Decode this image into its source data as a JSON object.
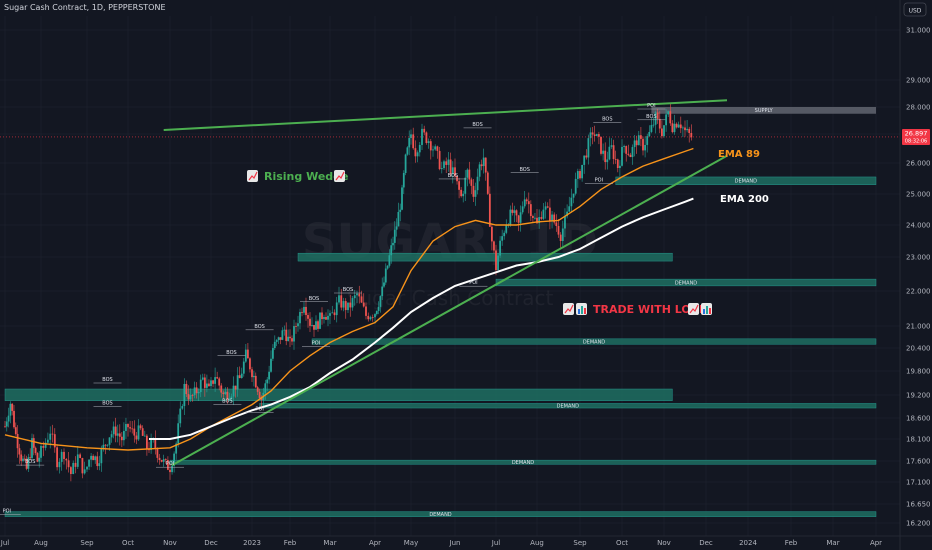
{
  "header": {
    "title": "Sugar Cash Contract, 1D, PEPPERSTONE",
    "currency": "USD"
  },
  "watermark": {
    "symbol": "SUGAR, 1D",
    "name": "Sugar Cash Contract"
  },
  "colors": {
    "bg": "#131722",
    "up": "#26a69a",
    "down": "#ef5350",
    "ema89": "#f7931a",
    "ema200": "#ffffff",
    "wedge": "#4caf50",
    "zone": "#1e6e62",
    "supply": "#5d606b",
    "price_tag": "#f23645"
  },
  "price_label": {
    "price": "26.897",
    "countdown": "08:32:06",
    "value": 26.897
  },
  "annotations": {
    "rising_wedge": "Rising Wedge",
    "trade_with_love": "TRADE WITH LOVE",
    "ema89": "EMA 89",
    "ema200": "EMA 200",
    "chart_icon": "chart-increasing-icon",
    "bar_icon": "bar-chart-icon"
  },
  "chart_data": {
    "type": "candlestick",
    "x_axis": [
      "Jul",
      "Aug",
      "Sep",
      "Oct",
      "Nov",
      "Dec",
      "2023",
      "Feb",
      "Mar",
      "Apr",
      "May",
      "Jun",
      "Jul",
      "Aug",
      "Sep",
      "Oct",
      "Nov",
      "Dec",
      "2024",
      "Feb",
      "Mar",
      "Apr"
    ],
    "y_ticks": [
      16.2,
      16.65,
      17.1,
      17.6,
      18.1,
      18.6,
      19.2,
      19.8,
      20.4,
      21.0,
      22.0,
      23.0,
      24.0,
      25.0,
      26.0,
      27.0,
      28.0,
      29.0,
      31.0
    ],
    "y_range": [
      16.15,
      31.8
    ],
    "close_path_t_v": [
      [
        0,
        18.4
      ],
      [
        0.15,
        19.0
      ],
      [
        0.3,
        18.2
      ],
      [
        0.45,
        17.7
      ],
      [
        0.6,
        17.4
      ],
      [
        0.75,
        18.0
      ],
      [
        0.9,
        17.6
      ],
      [
        1.05,
        17.9
      ],
      [
        1.2,
        18.3
      ],
      [
        1.35,
        17.6
      ],
      [
        1.5,
        17.8
      ],
      [
        1.65,
        17.3
      ],
      [
        1.8,
        17.7
      ],
      [
        1.95,
        17.3
      ],
      [
        2.1,
        17.8
      ],
      [
        2.25,
        17.6
      ],
      [
        2.4,
        17.9
      ],
      [
        2.55,
        18.2
      ],
      [
        2.7,
        18.3
      ],
      [
        2.85,
        18.1
      ],
      [
        3.0,
        18.4
      ],
      [
        3.15,
        18.2
      ],
      [
        3.3,
        18.3
      ],
      [
        3.45,
        17.9
      ],
      [
        3.6,
        18.0
      ],
      [
        3.75,
        17.7
      ],
      [
        3.9,
        17.5
      ],
      [
        4.0,
        17.45
      ],
      [
        4.15,
        18.0
      ],
      [
        4.35,
        19.4
      ],
      [
        4.5,
        19.1
      ],
      [
        4.65,
        19.3
      ],
      [
        4.8,
        19.6
      ],
      [
        4.95,
        19.3
      ],
      [
        5.1,
        19.7
      ],
      [
        5.3,
        19.2
      ],
      [
        5.5,
        19.3
      ],
      [
        5.7,
        19.6
      ],
      [
        5.85,
        20.2
      ],
      [
        6.0,
        19.8
      ],
      [
        6.15,
        19.4
      ],
      [
        6.25,
        19.1
      ],
      [
        6.4,
        19.6
      ],
      [
        6.55,
        20.4
      ],
      [
        6.7,
        20.6
      ],
      [
        6.85,
        20.9
      ],
      [
        7.0,
        20.5
      ],
      [
        7.2,
        21.2
      ],
      [
        7.35,
        21.7
      ],
      [
        7.5,
        21.1
      ],
      [
        7.65,
        21.0
      ],
      [
        7.85,
        21.4
      ],
      [
        8.0,
        21.2
      ],
      [
        8.2,
        21.7
      ],
      [
        8.4,
        21.5
      ],
      [
        8.6,
        21.9
      ],
      [
        8.8,
        21.3
      ],
      [
        9.0,
        21.4
      ],
      [
        9.2,
        22.0
      ],
      [
        9.4,
        23.0
      ],
      [
        9.6,
        24.0
      ],
      [
        9.75,
        25.0
      ],
      [
        9.85,
        26.1
      ],
      [
        10.0,
        27.0
      ],
      [
        10.1,
        26.4
      ],
      [
        10.25,
        27.0
      ],
      [
        10.4,
        26.8
      ],
      [
        10.55,
        26.4
      ],
      [
        10.7,
        25.8
      ],
      [
        10.85,
        26.0
      ],
      [
        11.0,
        25.5
      ],
      [
        11.15,
        24.9
      ],
      [
        11.3,
        25.7
      ],
      [
        11.45,
        25.0
      ],
      [
        11.6,
        25.9
      ],
      [
        11.7,
        26.2
      ],
      [
        11.8,
        24.8
      ],
      [
        11.9,
        23.5
      ],
      [
        12.0,
        22.7
      ],
      [
        12.1,
        23.4
      ],
      [
        12.25,
        24.1
      ],
      [
        12.4,
        24.4
      ],
      [
        12.55,
        24.0
      ],
      [
        12.7,
        25.0
      ],
      [
        12.85,
        24.5
      ],
      [
        13.0,
        24.0
      ],
      [
        13.15,
        24.6
      ],
      [
        13.3,
        24.3
      ],
      [
        13.45,
        24.0
      ],
      [
        13.55,
        23.7
      ],
      [
        13.7,
        24.3
      ],
      [
        13.85,
        25.2
      ],
      [
        14.0,
        25.7
      ],
      [
        14.15,
        26.4
      ],
      [
        14.3,
        27.1
      ],
      [
        14.45,
        26.7
      ],
      [
        14.6,
        26.1
      ],
      [
        14.75,
        26.5
      ],
      [
        14.9,
        25.9
      ],
      [
        15.05,
        26.6
      ],
      [
        15.2,
        26.3
      ],
      [
        15.35,
        26.8
      ],
      [
        15.5,
        26.6
      ],
      [
        15.65,
        27.0
      ],
      [
        15.8,
        27.6
      ],
      [
        15.95,
        27.1
      ],
      [
        16.1,
        27.8
      ],
      [
        16.2,
        27.3
      ],
      [
        16.35,
        27.5
      ],
      [
        16.5,
        27.1
      ],
      [
        16.65,
        26.9
      ]
    ],
    "series": [
      {
        "name": "EMA 89",
        "t_v": [
          [
            0,
            18.2
          ],
          [
            1,
            18.0
          ],
          [
            2,
            17.9
          ],
          [
            3,
            17.85
          ],
          [
            4,
            17.9
          ],
          [
            4.5,
            18.1
          ],
          [
            5,
            18.4
          ],
          [
            6,
            18.95
          ],
          [
            6.5,
            19.3
          ],
          [
            7,
            19.8
          ],
          [
            7.5,
            20.2
          ],
          [
            8,
            20.55
          ],
          [
            8.5,
            20.85
          ],
          [
            9,
            21.1
          ],
          [
            9.5,
            21.55
          ],
          [
            10,
            22.6
          ],
          [
            10.5,
            23.5
          ],
          [
            11,
            23.95
          ],
          [
            11.5,
            24.15
          ],
          [
            12,
            24.0
          ],
          [
            12.5,
            24.0
          ],
          [
            13,
            24.1
          ],
          [
            13.5,
            24.15
          ],
          [
            14,
            24.6
          ],
          [
            14.5,
            25.15
          ],
          [
            15,
            25.55
          ],
          [
            15.5,
            25.9
          ],
          [
            16,
            26.15
          ],
          [
            16.5,
            26.4
          ],
          [
            16.7,
            26.5
          ]
        ]
      },
      {
        "name": "EMA 200",
        "t_v": [
          [
            3.5,
            18.1
          ],
          [
            4,
            18.1
          ],
          [
            4.5,
            18.2
          ],
          [
            5,
            18.4
          ],
          [
            5.5,
            18.6
          ],
          [
            6,
            18.8
          ],
          [
            6.5,
            18.95
          ],
          [
            7,
            19.15
          ],
          [
            7.5,
            19.4
          ],
          [
            8,
            19.75
          ],
          [
            8.5,
            20.1
          ],
          [
            9,
            20.55
          ],
          [
            9.5,
            20.95
          ],
          [
            10,
            21.4
          ],
          [
            10.5,
            21.8
          ],
          [
            11,
            22.15
          ],
          [
            11.5,
            22.35
          ],
          [
            12,
            22.55
          ],
          [
            12.5,
            22.75
          ],
          [
            13,
            22.85
          ],
          [
            13.5,
            23.0
          ],
          [
            14,
            23.25
          ],
          [
            14.5,
            23.6
          ],
          [
            15,
            23.95
          ],
          [
            15.5,
            24.25
          ],
          [
            16,
            24.5
          ],
          [
            16.5,
            24.75
          ],
          [
            16.7,
            24.85
          ]
        ]
      }
    ],
    "zones": [
      {
        "label": "SUPPLY",
        "low": 27.75,
        "high": 28.0,
        "t_start": 15.7,
        "t_end": 21.0,
        "kind": "supply"
      },
      {
        "label": "DEMAND",
        "low": 25.3,
        "high": 25.55,
        "t_start": 14.85,
        "t_end": 21.0,
        "kind": "demand"
      },
      {
        "label": "",
        "low": 22.88,
        "high": 23.12,
        "t_start": 7.2,
        "t_end": 16.2,
        "kind": "demand"
      },
      {
        "label": "DEMAND",
        "low": 22.15,
        "high": 22.35,
        "t_start": 12.0,
        "t_end": 21.0,
        "kind": "demand"
      },
      {
        "label": "DEMAND",
        "low": 20.5,
        "high": 20.65,
        "t_start": 7.55,
        "t_end": 21.0,
        "kind": "demand"
      },
      {
        "label": "",
        "low": 19.05,
        "high": 19.35,
        "t_start": 0,
        "t_end": 16.2,
        "kind": "demand"
      },
      {
        "label": "DEMAND",
        "low": 18.86,
        "high": 18.98,
        "t_start": 6.2,
        "t_end": 21.0,
        "kind": "demand"
      },
      {
        "label": "DEMAND",
        "low": 17.52,
        "high": 17.62,
        "t_start": 4.0,
        "t_end": 21.0,
        "kind": "demand"
      },
      {
        "label": "DEMAND",
        "low": 16.35,
        "high": 16.47,
        "t_start": 0,
        "t_end": 21.0,
        "kind": "demand"
      }
    ],
    "wedge_lines": [
      {
        "t1": 3.85,
        "v1": 27.15,
        "t2": 17.5,
        "v2": 28.25
      },
      {
        "t1": 4.05,
        "v1": 17.5,
        "t2": 17.5,
        "v2": 26.25
      }
    ],
    "structure_labels": [
      {
        "text": "BOS",
        "t": 2.5,
        "v": 19.55
      },
      {
        "text": "BOS",
        "t": 2.5,
        "v": 18.95
      },
      {
        "text": "BOS",
        "t": 5.4,
        "v": 19.0
      },
      {
        "text": "BOS",
        "t": 5.5,
        "v": 20.25
      },
      {
        "text": "BOS",
        "t": 6.2,
        "v": 20.95
      },
      {
        "text": "BOS",
        "t": 7.6,
        "v": 21.75
      },
      {
        "text": "BOS",
        "t": 8.4,
        "v": 22.0
      },
      {
        "text": "BOS",
        "t": 11.55,
        "v": 27.3
      },
      {
        "text": "BOS",
        "t": 10.95,
        "v": 25.55
      },
      {
        "text": "BOS",
        "t": 12.7,
        "v": 25.75
      },
      {
        "text": "BOS",
        "t": 14.65,
        "v": 27.5
      },
      {
        "text": "BOS",
        "t": 15.7,
        "v": 27.6
      },
      {
        "text": "BOS",
        "t": 0.7,
        "v": 17.55
      },
      {
        "text": "POI",
        "t": 6.2,
        "v": 18.8
      },
      {
        "text": "POI",
        "t": 7.65,
        "v": 20.5
      },
      {
        "text": "POI",
        "t": 4.0,
        "v": 17.5
      },
      {
        "text": "POI",
        "t": 11.45,
        "v": 22.2
      },
      {
        "text": "POI",
        "t": 14.45,
        "v": 25.4
      },
      {
        "text": "POI",
        "t": 15.7,
        "v": 28.0
      },
      {
        "text": "POI",
        "t": 0.05,
        "v": 16.45
      }
    ]
  }
}
